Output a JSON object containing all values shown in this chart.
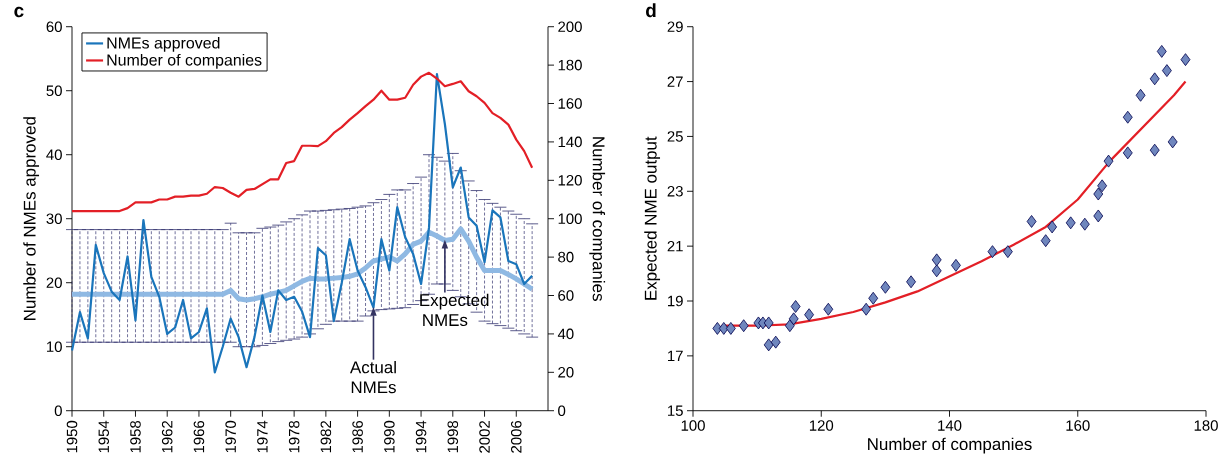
{
  "chart_data": [
    {
      "type": "line",
      "title": "c",
      "ylabel": "Number of NMEs approved",
      "y2label": "Number of companies",
      "legend": "top left",
      "x": [
        1950,
        1951,
        1952,
        1953,
        1954,
        1955,
        1956,
        1957,
        1958,
        1959,
        1960,
        1961,
        1962,
        1963,
        1964,
        1965,
        1966,
        1967,
        1968,
        1969,
        1970,
        1971,
        1972,
        1973,
        1974,
        1975,
        1976,
        1977,
        1978,
        1979,
        1980,
        1981,
        1982,
        1983,
        1984,
        1985,
        1986,
        1987,
        1988,
        1989,
        1990,
        1991,
        1992,
        1993,
        1994,
        1995,
        1996,
        1997,
        1998,
        1999,
        2000,
        2001,
        2002,
        2003,
        2004,
        2005,
        2006,
        2007,
        2008
      ],
      "xlim": [
        1950,
        2010
      ],
      "xticks": [
        1950,
        1954,
        1958,
        1962,
        1966,
        1970,
        1974,
        1978,
        1982,
        1986,
        1990,
        1994,
        1998,
        2002,
        2006
      ],
      "ylim": [
        0,
        60
      ],
      "yticks": [
        0,
        10,
        20,
        30,
        40,
        50,
        60
      ],
      "y2lim": [
        0,
        200
      ],
      "y2ticks": [
        0,
        20,
        40,
        60,
        80,
        100,
        120,
        140,
        160,
        180,
        200
      ],
      "series": [
        {
          "name": "NMEs approved",
          "color": "#1a75bb",
          "values": [
            9.4,
            15.4,
            11.3,
            25.9,
            21.5,
            18.6,
            17.3,
            24.1,
            14.1,
            29.8,
            20.9,
            17.8,
            12,
            13,
            17.3,
            11.3,
            12.3,
            16,
            6,
            10,
            14.4,
            11.5,
            6.8,
            11.5,
            18,
            12.3,
            18.8,
            17.3,
            17.8,
            15.5,
            11.5,
            25.4,
            24.3,
            14,
            20,
            26.8,
            21.9,
            19.3,
            16.1,
            26.8,
            21.9,
            31.8,
            27.1,
            24.5,
            19.8,
            28.6,
            52.6,
            44.8,
            34.9,
            38,
            30.2,
            28.9,
            23.2,
            31.3,
            30.2,
            23.4,
            22.9,
            19.8,
            21.1
          ]
        },
        {
          "name": "Number of companies",
          "color": "#e31f26",
          "axis": "y2",
          "values": [
            104,
            104,
            104,
            104,
            104,
            104,
            104,
            105.5,
            108.5,
            108.5,
            108.5,
            110,
            110,
            111.5,
            111.5,
            112,
            112,
            113,
            116.5,
            116,
            113.5,
            111.5,
            115,
            115.5,
            118,
            120.5,
            120.5,
            129,
            130,
            138,
            138,
            137.8,
            140.4,
            144.7,
            147.7,
            151.6,
            155,
            158.6,
            162,
            166.7,
            162,
            162,
            163,
            169.8,
            174,
            176,
            173,
            169,
            170.2,
            171.6,
            166.4,
            163.8,
            160.3,
            155,
            152.5,
            149,
            141.2,
            135.2,
            126.5
          ]
        },
        {
          "color": "#8fb9e3",
          "values": [
            18.2,
            18.2,
            18.2,
            18.2,
            18.2,
            18.2,
            18.2,
            18.2,
            18.2,
            18.2,
            18.2,
            18.2,
            18.2,
            18.2,
            18.2,
            18.2,
            18.2,
            18.2,
            18.2,
            18.2,
            18.8,
            17.5,
            17.3,
            17.5,
            17.8,
            18.2,
            18.5,
            18.8,
            19.5,
            20.2,
            20.7,
            20.6,
            20.6,
            20.7,
            20.8,
            21,
            21.4,
            22.3,
            23.4,
            23.7,
            24,
            23.4,
            24.5,
            26,
            26.5,
            27.9,
            27.3,
            26.6,
            26.8,
            28.4,
            26.5,
            24,
            21.9,
            21.9,
            21.9,
            21.3,
            20.6,
            19.8,
            19
          ],
          "errors": [
            [
              10.7,
              28.3
            ],
            [
              10.7,
              28.3
            ],
            [
              10.7,
              28.3
            ],
            [
              10.7,
              28.3
            ],
            [
              10.7,
              28.3
            ],
            [
              10.7,
              28.3
            ],
            [
              10.7,
              28.3
            ],
            [
              10.7,
              28.3
            ],
            [
              10.7,
              28.3
            ],
            [
              10.7,
              28.3
            ],
            [
              10.7,
              28.3
            ],
            [
              10.7,
              28.3
            ],
            [
              10.7,
              28.3
            ],
            [
              10.7,
              28.3
            ],
            [
              10.7,
              28.3
            ],
            [
              10.7,
              28.3
            ],
            [
              10.7,
              28.3
            ],
            [
              10.7,
              28.3
            ],
            [
              10.7,
              28.3
            ],
            [
              10.7,
              28.3
            ],
            [
              10.7,
              29.3
            ],
            [
              10,
              27.8
            ],
            [
              10,
              27.8
            ],
            [
              10,
              27.8
            ],
            [
              10.2,
              28.5
            ],
            [
              10.5,
              28.7
            ],
            [
              10.8,
              29
            ],
            [
              11,
              29.5
            ],
            [
              11.2,
              30
            ],
            [
              11.5,
              30.6
            ],
            [
              12,
              31.2
            ],
            [
              12.8,
              31.2
            ],
            [
              13.5,
              31.3
            ],
            [
              14,
              31.4
            ],
            [
              14,
              31.5
            ],
            [
              14,
              31.6
            ],
            [
              14,
              31.8
            ],
            [
              14.8,
              32
            ],
            [
              15.6,
              32.5
            ],
            [
              15.8,
              33
            ],
            [
              15.9,
              33.8
            ],
            [
              16,
              34.5
            ],
            [
              16.1,
              34.5
            ],
            [
              16.6,
              35.5
            ],
            [
              17.2,
              36.5
            ],
            [
              18.2,
              40
            ],
            [
              19.8,
              39.6
            ],
            [
              19.8,
              39
            ],
            [
              18.8,
              40.2
            ],
            [
              17.8,
              37.5
            ],
            [
              16.7,
              35.9
            ],
            [
              15.4,
              34.4
            ],
            [
              14,
              33
            ],
            [
              13.6,
              32.4
            ],
            [
              13.3,
              31.8
            ],
            [
              12.9,
              31.2
            ],
            [
              12.5,
              30.7
            ],
            [
              12,
              30
            ],
            [
              11.5,
              29.2
            ]
          ]
        }
      ],
      "annotations": [
        {
          "text": "Actual NMEs",
          "x": 1988,
          "y": 16.1
        },
        {
          "text": "Expected NMEs",
          "x": 1997,
          "y": 26.6
        }
      ]
    },
    {
      "type": "scatter",
      "title": "d",
      "xlabel": "Number of companies",
      "ylabel": "Expected NME output",
      "xlim": [
        100,
        180
      ],
      "xticks": [
        100,
        120,
        140,
        160,
        180
      ],
      "ylim": [
        15,
        29
      ],
      "yticks": [
        15,
        17,
        19,
        21,
        23,
        25,
        27,
        29
      ],
      "series": [
        {
          "color": "#6f86bd",
          "marker": "diamond",
          "x": [
            103.8,
            104.8,
            105.9,
            107.9,
            110.2,
            110.9,
            111.8,
            111.8,
            112.9,
            115.1,
            115.7,
            116,
            118.1,
            121.1,
            127,
            128.1,
            130,
            134,
            138,
            138,
            141,
            146.7,
            149.1,
            152.8,
            155,
            156,
            158.9,
            161.1,
            163.2,
            163.2,
            163.8,
            164.8,
            167.8,
            167.8,
            169.8,
            172,
            172,
            173.1,
            173.9,
            174.8,
            176.8
          ],
          "values": [
            18,
            18,
            18,
            18.1,
            18.2,
            18.2,
            18.2,
            17.4,
            17.5,
            18.1,
            18.35,
            18.8,
            18.5,
            18.7,
            18.7,
            19.1,
            19.5,
            19.7,
            20.1,
            20.5,
            20.3,
            20.8,
            20.8,
            21.9,
            21.2,
            21.7,
            21.85,
            21.8,
            22.1,
            22.9,
            23.2,
            24.1,
            25.7,
            24.4,
            26.5,
            27.1,
            24.5,
            28.1,
            27.4,
            24.8,
            27.8
          ]
        },
        {
          "type": "line",
          "color": "#e31f26",
          "x": [
            104.5,
            110,
            115,
            120,
            125,
            130,
            135,
            140,
            145,
            150,
            155,
            160,
            165,
            170,
            175,
            176.8
          ],
          "values": [
            18.1,
            18.1,
            18.15,
            18.35,
            18.6,
            18.95,
            19.35,
            19.9,
            20.45,
            21.05,
            21.7,
            22.7,
            24.1,
            25.3,
            26.5,
            27
          ]
        }
      ]
    }
  ]
}
